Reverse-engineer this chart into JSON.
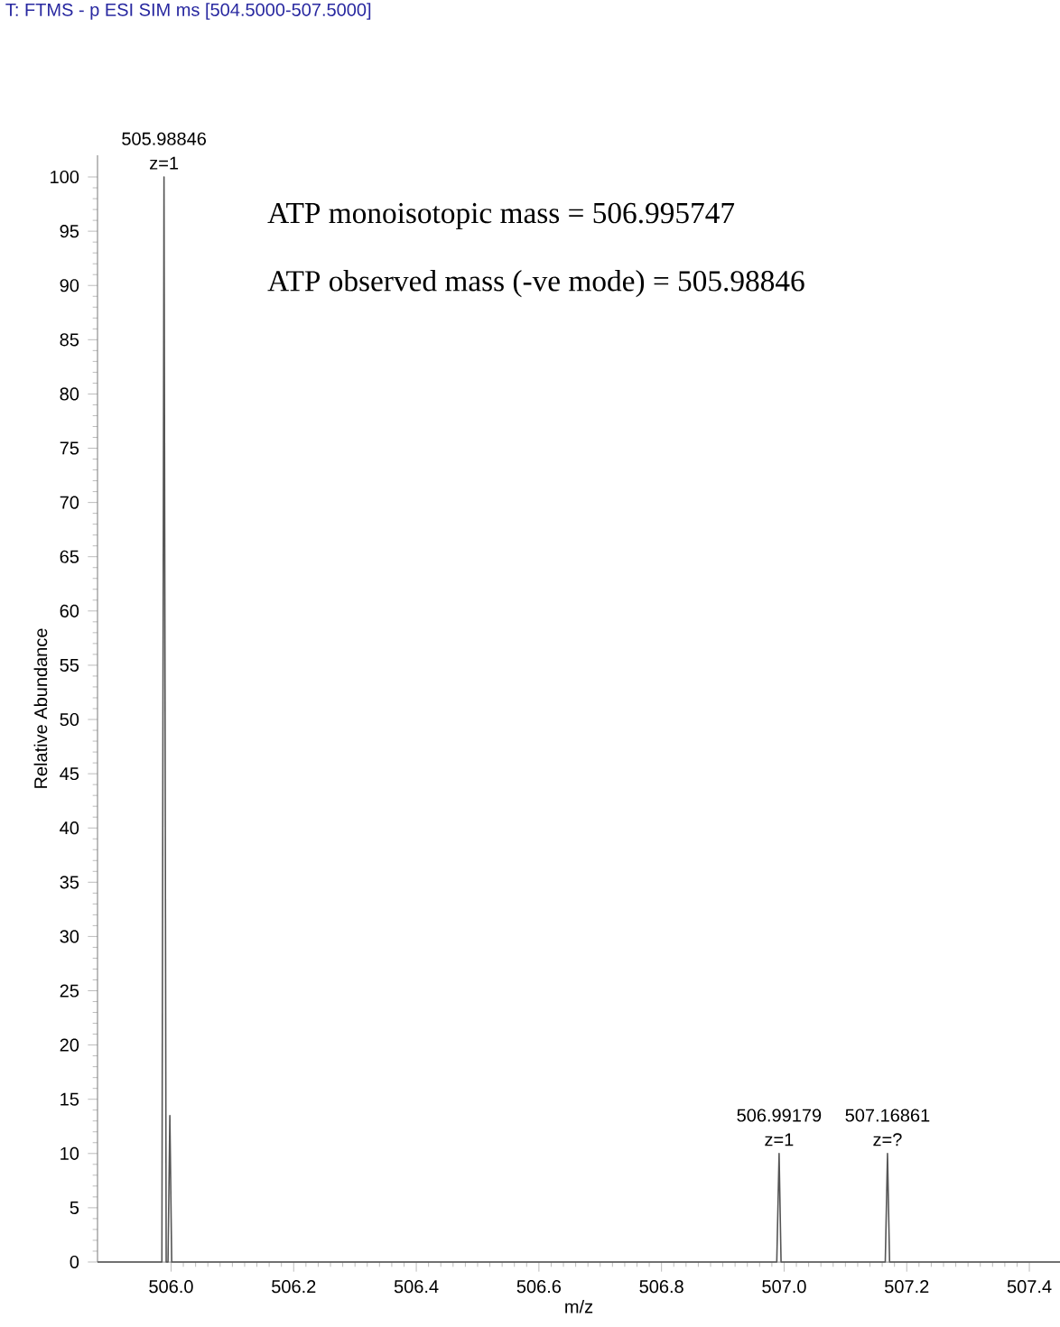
{
  "chart_data": {
    "type": "line",
    "title": "T: FTMS - p ESI SIM ms [504.5000-507.5000]",
    "xlabel": "m/z",
    "ylabel": "Relative Abundance",
    "x": [
      505.88,
      505.985,
      505.98846,
      505.992,
      505.995,
      505.998,
      506.001,
      506.988,
      506.99179,
      506.995,
      507.165,
      507.16861,
      507.172,
      507.45
    ],
    "series": [
      {
        "color": "#555555",
        "values": [
          0,
          0,
          100,
          0,
          0,
          13.5,
          0,
          0,
          10,
          0,
          0,
          10,
          0,
          0
        ]
      }
    ],
    "xlim": [
      505.88,
      507.45
    ],
    "ylim": [
      0,
      102
    ],
    "xticks": [
      {
        "value": 506.0,
        "label": "506.0"
      },
      506.2,
      506.4,
      506.6,
      506.8,
      {
        "value": 507.0,
        "label": "507.0"
      },
      507.2,
      507.4
    ],
    "yticks": [
      0,
      5,
      10,
      15,
      20,
      25,
      30,
      35,
      40,
      45,
      50,
      55,
      60,
      65,
      70,
      75,
      80,
      85,
      90,
      95,
      100
    ],
    "marker": "none",
    "line_style": "solid",
    "annotations": [
      {
        "text": "505.98846",
        "x": 505.98846,
        "y": 100
      },
      {
        "text": "z=1",
        "x": 505.98846,
        "y": 100
      },
      {
        "text": "506.99179",
        "x": 506.99179,
        "y": 10
      },
      {
        "text": "z=1",
        "x": 506.99179,
        "y": 10
      },
      {
        "text": "507.16861",
        "x": 507.16861,
        "y": 10
      },
      {
        "text": "z=?",
        "x": 507.16861,
        "y": 10
      },
      "ATP monoisotopic mass = 506.995747",
      "ATP observed mass (-ve mode) = 505.98846"
    ]
  }
}
